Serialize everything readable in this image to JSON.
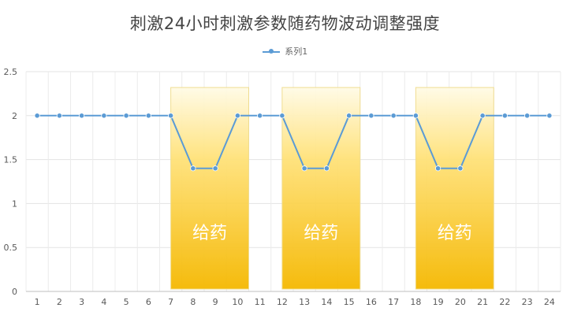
{
  "chart_data": {
    "type": "line",
    "title": "刺激24小时刺激参数随药物波动调整强度",
    "categories": [
      "1",
      "2",
      "3",
      "4",
      "5",
      "6",
      "7",
      "8",
      "9",
      "10",
      "11",
      "12",
      "13",
      "14",
      "15",
      "16",
      "17",
      "18",
      "19",
      "20",
      "21",
      "22",
      "23",
      "24"
    ],
    "series": [
      {
        "name": "系列1",
        "values": [
          2,
          2,
          2,
          2,
          2,
          2,
          2,
          1.4,
          1.4,
          2,
          2,
          2,
          1.4,
          1.4,
          2,
          2,
          2,
          2,
          1.4,
          1.4,
          2,
          2,
          2,
          2
        ],
        "color": "#5b9bd5"
      }
    ],
    "ylim": [
      0,
      2.5
    ],
    "yticks": [
      "0",
      "0.5",
      "1",
      "1.5",
      "2",
      "2.5"
    ],
    "grid": true,
    "legend_position": "top",
    "bands": [
      {
        "label": "给药",
        "from": "7",
        "to": "10.5"
      },
      {
        "label": "给药",
        "from": "12",
        "to": "15.5"
      },
      {
        "label": "给药",
        "from": "18",
        "to": "21.5"
      }
    ],
    "band_color": "#f5b800"
  }
}
